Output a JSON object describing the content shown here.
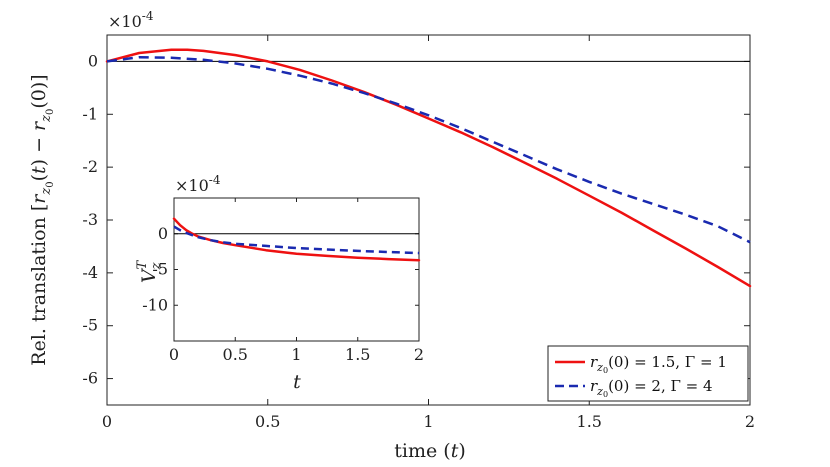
{
  "chart_data": [
    {
      "type": "line",
      "role": "main",
      "xlabel": "time (t)",
      "ylabel": "Rel. translation [r_{z0}(t) − r_{z0}(0)]",
      "exponent_label": "×10^-4",
      "xlim": [
        0,
        2
      ],
      "ylim": [
        -6.5,
        0.5
      ],
      "xticks": [
        "0",
        "0.5",
        "1",
        "1.5",
        "2"
      ],
      "yticks": [
        "0",
        "-1",
        "-2",
        "-3",
        "-4",
        "-5",
        "-6"
      ],
      "reference_line_y": 0,
      "series": [
        {
          "name": "r_{z0}(0) = 1.5, Γ = 1",
          "color": "#ee1111",
          "style": "solid",
          "x": [
            0,
            0.1,
            0.2,
            0.25,
            0.3,
            0.4,
            0.5,
            0.6,
            0.7,
            0.8,
            0.9,
            1.0,
            1.1,
            1.2,
            1.3,
            1.4,
            1.5,
            1.6,
            1.7,
            1.8,
            1.9,
            2.0
          ],
          "values": [
            0,
            0.16,
            0.22,
            0.22,
            0.2,
            0.12,
            0.0,
            -0.16,
            -0.36,
            -0.58,
            -0.82,
            -1.08,
            -1.34,
            -1.62,
            -1.92,
            -2.22,
            -2.54,
            -2.86,
            -3.2,
            -3.54,
            -3.89,
            -4.25
          ]
        },
        {
          "name": "r_{z0}(0) = 2, Γ = 4",
          "color": "#1a2ab0",
          "style": "dashed",
          "x": [
            0,
            0.1,
            0.2,
            0.3,
            0.4,
            0.5,
            0.6,
            0.7,
            0.8,
            0.9,
            1.0,
            1.1,
            1.2,
            1.3,
            1.4,
            1.5,
            1.6,
            1.7,
            1.8,
            1.9,
            2.0
          ],
          "values": [
            0,
            0.08,
            0.07,
            0.03,
            -0.04,
            -0.14,
            -0.27,
            -0.42,
            -0.6,
            -0.8,
            -1.02,
            -1.26,
            -1.52,
            -1.78,
            -2.04,
            -2.28,
            -2.5,
            -2.7,
            -2.9,
            -3.12,
            -3.42
          ]
        }
      ],
      "legend_position": "bottom-right"
    },
    {
      "type": "line",
      "role": "inset",
      "xlabel": "t",
      "ylabel": "V_z^T",
      "exponent_label": "×10^-4",
      "xlim": [
        0,
        2
      ],
      "ylim": [
        -15,
        5
      ],
      "xticks": [
        "0",
        "0.5",
        "1",
        "1.5",
        "2"
      ],
      "yticks": [
        "0",
        "-5",
        "-10"
      ],
      "reference_line_y": 0,
      "series": [
        {
          "name": "r_{z0}(0) = 1.5, Γ = 1",
          "color": "#ee1111",
          "style": "solid",
          "x": [
            0,
            0.05,
            0.1,
            0.15,
            0.2,
            0.3,
            0.4,
            0.5,
            0.75,
            1.0,
            1.25,
            1.5,
            1.75,
            2.0
          ],
          "values": [
            2.1,
            1.2,
            0.5,
            0.0,
            -0.4,
            -0.9,
            -1.3,
            -1.6,
            -2.3,
            -2.8,
            -3.1,
            -3.35,
            -3.55,
            -3.7
          ]
        },
        {
          "name": "r_{z0}(0) = 2, Γ = 4",
          "color": "#1a2ab0",
          "style": "dashed",
          "x": [
            0,
            0.05,
            0.1,
            0.15,
            0.2,
            0.3,
            0.4,
            0.5,
            0.75,
            1.0,
            1.25,
            1.5,
            1.75,
            2.0
          ],
          "values": [
            1.0,
            0.5,
            0.1,
            -0.2,
            -0.5,
            -0.9,
            -1.2,
            -1.4,
            -1.7,
            -2.0,
            -2.2,
            -2.4,
            -2.55,
            -2.7
          ]
        }
      ]
    }
  ]
}
